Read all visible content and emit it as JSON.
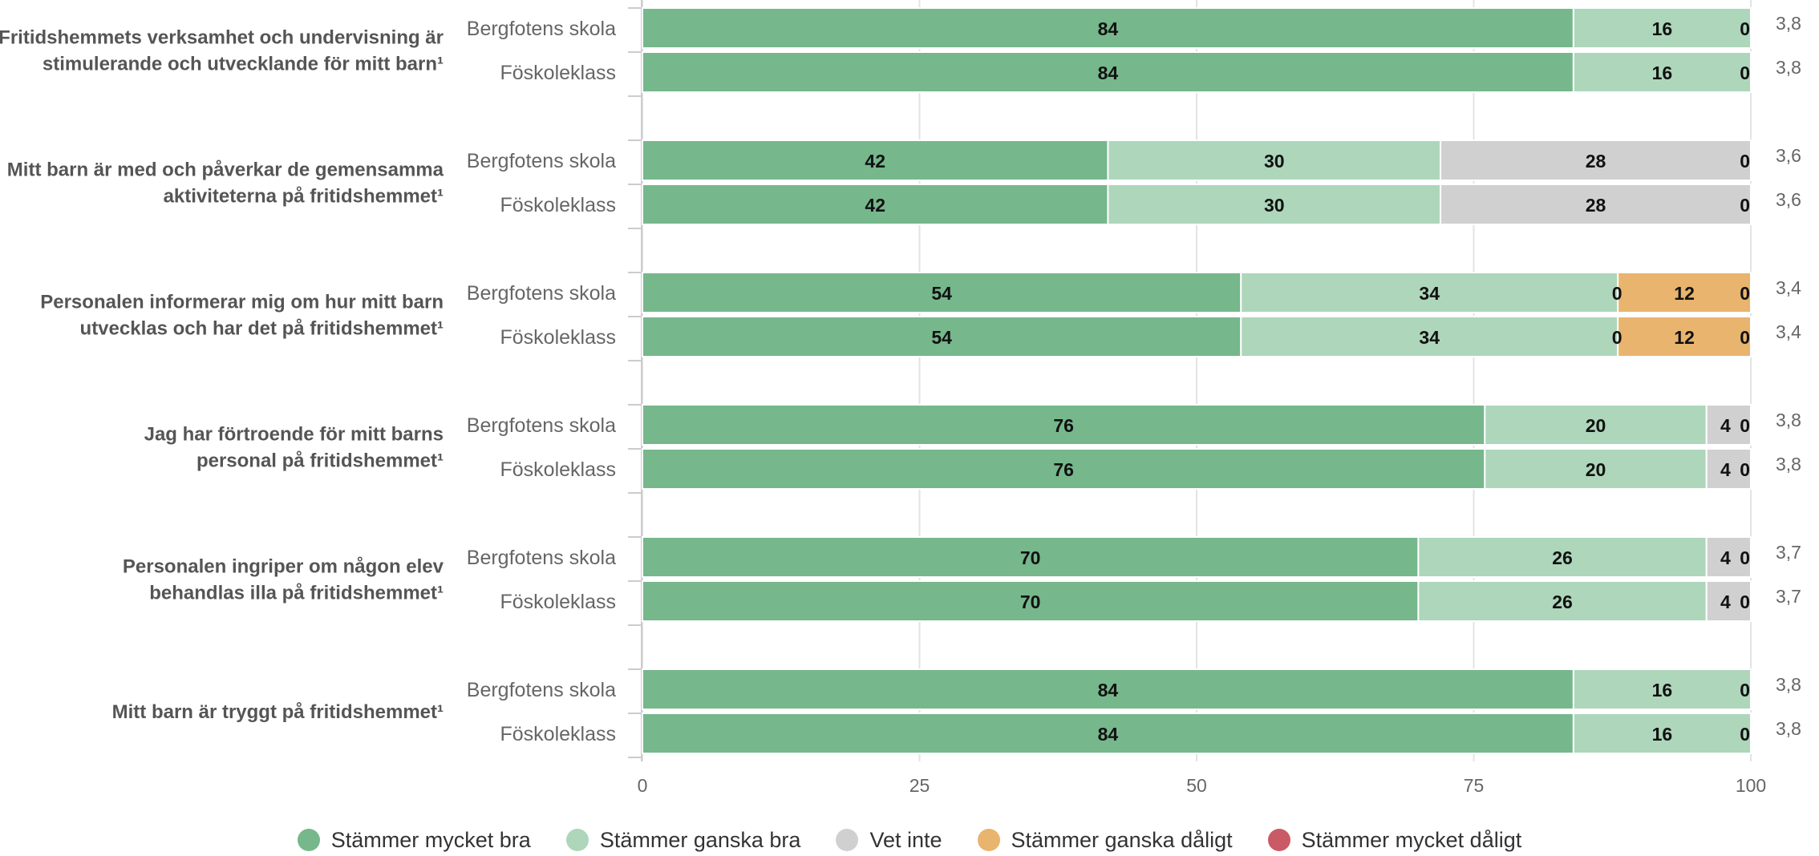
{
  "colors": {
    "stammer_mycket_bra": "#76b78c",
    "stammer_ganska_bra": "#add6bb",
    "vet_inte": "#d0d0d0",
    "stammer_ganska_daligt": "#e9b46d",
    "stammer_mycket_daligt": "#c95a66"
  },
  "legend": [
    {
      "label": "Stämmer mycket bra",
      "color": "#76b78c"
    },
    {
      "label": "Stämmer ganska bra",
      "color": "#add6bb"
    },
    {
      "label": "Vet inte",
      "color": "#d0d0d0"
    },
    {
      "label": "Stämmer ganska dåligt",
      "color": "#e9b46d"
    },
    {
      "label": "Stämmer mycket dåligt",
      "color": "#c95a66"
    }
  ],
  "chart_data": {
    "type": "bar",
    "orientation": "horizontal",
    "stacked": true,
    "xlim": [
      0,
      100
    ],
    "xticks": [
      "0",
      "25",
      "50",
      "75",
      "100"
    ],
    "grid": true,
    "legend_position": "bottom",
    "series_names": [
      "Stämmer mycket bra",
      "Stämmer ganska bra",
      "Vet inte",
      "Stämmer ganska dåligt",
      "Stämmer mycket dåligt"
    ],
    "groups": [
      {
        "question": [
          "Fritidshemmets verksamhet och undervisning är",
          "stimulerande och utvecklande för mitt barn¹"
        ],
        "rows": [
          {
            "label": "Bergfotens skola",
            "values": [
              84,
              16,
              0,
              0,
              0
            ],
            "score": "3,8"
          },
          {
            "label": "Föskoleklass",
            "values": [
              84,
              16,
              0,
              0,
              0
            ],
            "score": "3,8"
          }
        ]
      },
      {
        "question": [
          "Mitt barn är med och påverkar de gemensamma",
          "aktiviteterna på fritidshemmet¹"
        ],
        "rows": [
          {
            "label": "Bergfotens skola",
            "values": [
              42,
              30,
              28,
              0,
              0
            ],
            "score": "3,6"
          },
          {
            "label": "Föskoleklass",
            "values": [
              42,
              30,
              28,
              0,
              0
            ],
            "score": "3,6"
          }
        ]
      },
      {
        "question": [
          "Personalen informerar mig om hur mitt barn",
          "utvecklas och har det på fritidshemmet¹"
        ],
        "rows": [
          {
            "label": "Bergfotens skola",
            "values": [
              54,
              34,
              0,
              12,
              0
            ],
            "score": "3,4"
          },
          {
            "label": "Föskoleklass",
            "values": [
              54,
              34,
              0,
              12,
              0
            ],
            "score": "3,4"
          }
        ]
      },
      {
        "question": [
          "Jag har förtroende för mitt barns",
          "personal på fritidshemmet¹"
        ],
        "rows": [
          {
            "label": "Bergfotens skola",
            "values": [
              76,
              20,
              4,
              0,
              0
            ],
            "score": "3,8"
          },
          {
            "label": "Föskoleklass",
            "values": [
              76,
              20,
              4,
              0,
              0
            ],
            "score": "3,8"
          }
        ]
      },
      {
        "question": [
          "Personalen ingriper om någon elev",
          "behandlas illa på fritidshemmet¹"
        ],
        "rows": [
          {
            "label": "Bergfotens skola",
            "values": [
              70,
              26,
              4,
              0,
              0
            ],
            "score": "3,7"
          },
          {
            "label": "Föskoleklass",
            "values": [
              70,
              26,
              4,
              0,
              0
            ],
            "score": "3,7"
          }
        ]
      },
      {
        "question": [
          "Mitt barn är tryggt på fritidshemmet¹"
        ],
        "rows": [
          {
            "label": "Bergfotens skola",
            "values": [
              84,
              16,
              0,
              0,
              0
            ],
            "score": "3,8"
          },
          {
            "label": "Föskoleklass",
            "values": [
              84,
              16,
              0,
              0,
              0
            ],
            "score": "3,8"
          }
        ]
      }
    ]
  }
}
